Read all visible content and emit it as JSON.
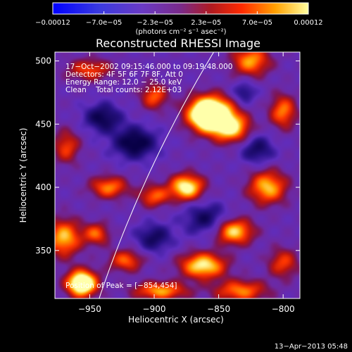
{
  "chart_data": {
    "type": "heatmap",
    "title": "Reconstructed RHESSI Image",
    "xlabel": "Heliocentric X (arcsec)",
    "ylabel": "Heliocentric Y (arcsec)",
    "xlim": [
      -977,
      -787
    ],
    "ylim": [
      312,
      507
    ],
    "x_ticks": [
      -950,
      -900,
      -850,
      -800
    ],
    "x_tick_labels": [
      "−950",
      "−900",
      "−850",
      "−800"
    ],
    "y_ticks": [
      350,
      400,
      450,
      500
    ],
    "y_tick_labels": [
      "350",
      "400",
      "450",
      "500"
    ],
    "colorbar": {
      "min": -0.00012,
      "max": 0.00012,
      "tick_labels": [
        "−0.00012",
        "−7.0e−05",
        "−2.3e−05",
        "2.3e−05",
        "7.0e−05",
        "0.00012"
      ],
      "unit_label": "(photons cm⁻² s⁻¹ asec⁻²)"
    },
    "info_lines": [
      "17−Oct−2002 09:15:46.000 to 09:19:48.000",
      "Detectors: 4F 5F 6F 7F 8F, Att 0",
      "Energy Range: 12.0 − 25.0 keV",
      "Clean    Total counts: 2.12E+03"
    ],
    "peak_text": "Position of Peak = [−854,454]",
    "peak": {
      "x": -854,
      "y": 454
    },
    "blobs": [
      {
        "x": -857,
        "y": 458,
        "sx": 11,
        "sy": 9,
        "amp": 1.25
      },
      {
        "x": -840,
        "y": 447,
        "sx": 10,
        "sy": 8,
        "amp": 0.6
      },
      {
        "x": -825,
        "y": 500,
        "sx": 10,
        "sy": 8,
        "amp": 0.5
      },
      {
        "x": -900,
        "y": 472,
        "sx": 7,
        "sy": 7,
        "amp": 0.4
      },
      {
        "x": -950,
        "y": 493,
        "sx": 12,
        "sy": 6,
        "amp": 0.35
      },
      {
        "x": -935,
        "y": 400,
        "sx": 10,
        "sy": 6,
        "amp": 0.45
      },
      {
        "x": -875,
        "y": 400,
        "sx": 9,
        "sy": 7,
        "amp": 0.7
      },
      {
        "x": -900,
        "y": 393,
        "sx": 8,
        "sy": 6,
        "amp": 0.4
      },
      {
        "x": -968,
        "y": 432,
        "sx": 7,
        "sy": 9,
        "amp": 0.35
      },
      {
        "x": -970,
        "y": 360,
        "sx": 9,
        "sy": 10,
        "amp": 0.55
      },
      {
        "x": -945,
        "y": 363,
        "sx": 7,
        "sy": 6,
        "amp": 0.4
      },
      {
        "x": -922,
        "y": 342,
        "sx": 9,
        "sy": 6,
        "amp": 0.4
      },
      {
        "x": -862,
        "y": 338,
        "sx": 12,
        "sy": 7,
        "amp": 0.65
      },
      {
        "x": -838,
        "y": 365,
        "sx": 10,
        "sy": 7,
        "amp": 0.6
      },
      {
        "x": -812,
        "y": 400,
        "sx": 10,
        "sy": 9,
        "amp": 0.55
      },
      {
        "x": -800,
        "y": 460,
        "sx": 7,
        "sy": 9,
        "amp": 0.45
      },
      {
        "x": -956,
        "y": 324,
        "sx": 8,
        "sy": 7,
        "amp": 0.95
      },
      {
        "x": -895,
        "y": 318,
        "sx": 14,
        "sy": 5,
        "amp": 0.5
      },
      {
        "x": -833,
        "y": 318,
        "sx": 14,
        "sy": 6,
        "amp": 0.45
      },
      {
        "x": -800,
        "y": 340,
        "sx": 8,
        "sy": 8,
        "amp": 0.35
      },
      {
        "x": -915,
        "y": 435,
        "sx": 12,
        "sy": 9,
        "amp": -0.4
      },
      {
        "x": -940,
        "y": 455,
        "sx": 10,
        "sy": 8,
        "amp": -0.35
      },
      {
        "x": -860,
        "y": 375,
        "sx": 12,
        "sy": 9,
        "amp": -0.3
      },
      {
        "x": -900,
        "y": 360,
        "sx": 10,
        "sy": 8,
        "amp": -0.3
      },
      {
        "x": -820,
        "y": 430,
        "sx": 9,
        "sy": 8,
        "amp": -0.3
      },
      {
        "x": -830,
        "y": 475,
        "sx": 6,
        "sy": 6,
        "amp": -0.25
      }
    ],
    "limb_arc": {
      "center": [
        0,
        0
      ],
      "radius": 993
    }
  },
  "footer_date": "13−Apr−2013 05:48"
}
